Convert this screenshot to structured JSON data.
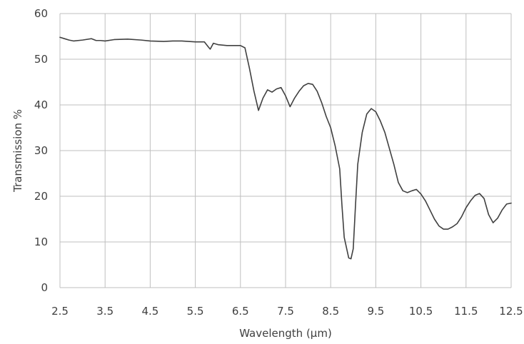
{
  "chart_data": {
    "type": "line",
    "title": "",
    "xlabel": "Wavelength (μm)",
    "ylabel": "Transmission %",
    "xlim": [
      2.5,
      12.5
    ],
    "ylim": [
      0,
      60
    ],
    "grid": true,
    "legend": "none",
    "x_ticks": [
      "2.5",
      "3.5",
      "4.5",
      "5.5",
      "6.5",
      "7.5",
      "8.5",
      "9.5",
      "10.5",
      "11.5",
      "12.5"
    ],
    "y_ticks": [
      "0",
      "10",
      "20",
      "30",
      "40",
      "50",
      "60"
    ],
    "series": [
      {
        "color": "#404040",
        "x": [
          2.5,
          2.6,
          2.7,
          2.8,
          3.0,
          3.2,
          3.3,
          3.4,
          3.5,
          3.7,
          4.0,
          4.3,
          4.5,
          4.8,
          5.0,
          5.2,
          5.5,
          5.7,
          5.78,
          5.83,
          5.9,
          6.0,
          6.2,
          6.5,
          6.6,
          6.7,
          6.8,
          6.9,
          7.0,
          7.1,
          7.2,
          7.3,
          7.4,
          7.5,
          7.6,
          7.7,
          7.8,
          7.9,
          8.0,
          8.1,
          8.2,
          8.3,
          8.4,
          8.5,
          8.6,
          8.7,
          8.75,
          8.8,
          8.9,
          8.95,
          9.0,
          9.05,
          9.1,
          9.2,
          9.3,
          9.4,
          9.5,
          9.6,
          9.7,
          9.8,
          9.9,
          10.0,
          10.1,
          10.2,
          10.3,
          10.4,
          10.5,
          10.6,
          10.7,
          10.8,
          10.9,
          11.0,
          11.1,
          11.2,
          11.3,
          11.4,
          11.5,
          11.6,
          11.7,
          11.8,
          11.9,
          12.0,
          12.1,
          12.2,
          12.3,
          12.4,
          12.5
        ],
        "y": [
          54.8,
          54.5,
          54.2,
          54.0,
          54.2,
          54.5,
          54.1,
          54.1,
          54.0,
          54.3,
          54.4,
          54.2,
          54.0,
          53.9,
          54.0,
          54.0,
          53.8,
          53.8,
          52.8,
          52.2,
          53.5,
          53.2,
          53.0,
          53.0,
          52.5,
          48.0,
          43.0,
          38.8,
          41.5,
          43.3,
          42.8,
          43.5,
          43.8,
          42.0,
          39.6,
          41.5,
          43.0,
          44.2,
          44.7,
          44.5,
          43.0,
          40.5,
          37.5,
          35.0,
          31.0,
          26.0,
          18.0,
          11.0,
          6.5,
          6.3,
          8.5,
          18.0,
          27.0,
          34.0,
          38.0,
          39.2,
          38.5,
          36.5,
          34.0,
          30.5,
          27.0,
          23.0,
          21.2,
          20.8,
          21.2,
          21.5,
          20.5,
          19.0,
          17.0,
          15.0,
          13.5,
          12.8,
          12.8,
          13.3,
          14.0,
          15.5,
          17.5,
          19.0,
          20.2,
          20.6,
          19.5,
          16.0,
          14.2,
          15.2,
          17.0,
          18.3,
          18.5
        ]
      }
    ]
  }
}
